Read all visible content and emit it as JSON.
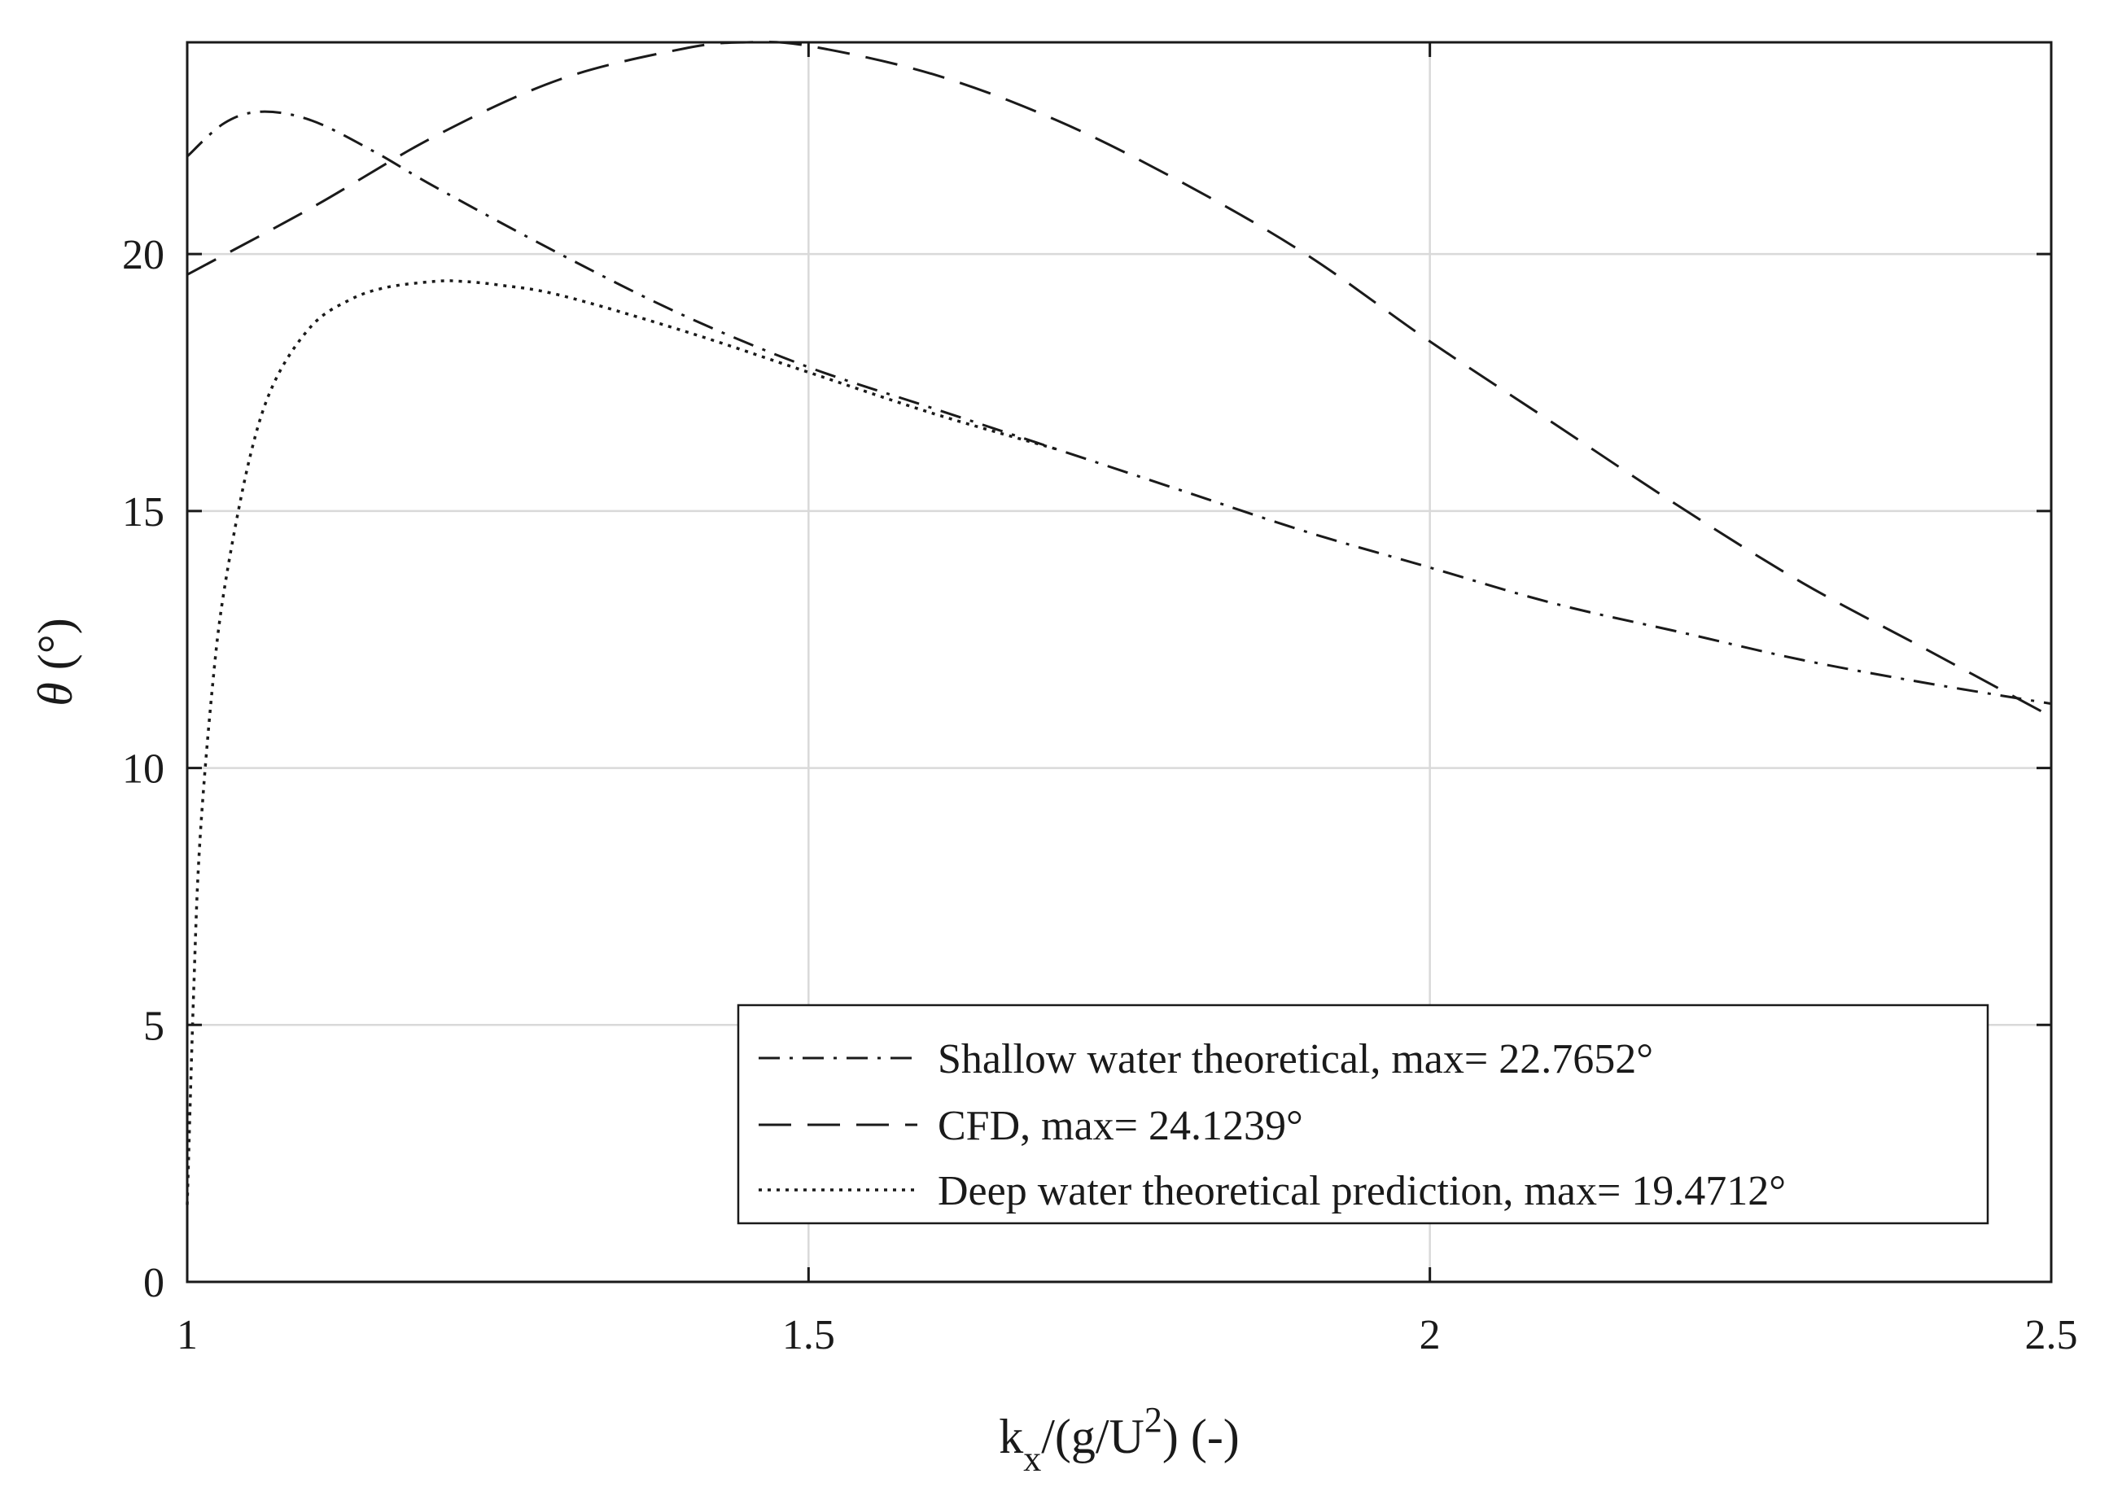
{
  "chart_data": {
    "type": "line",
    "title": "",
    "xlabel_main": "k",
    "xlabel_sub": "x",
    "xlabel_mid": "/(g/U",
    "xlabel_sup": "2",
    "xlabel_end": ") (-)",
    "ylabel_symbol": "θ",
    "ylabel_unit": " (°)",
    "xlim": [
      1,
      2.5
    ],
    "ylim": [
      0,
      24.12
    ],
    "xticks": [
      1,
      1.5,
      2,
      2.5
    ],
    "xtick_labels": [
      "1",
      "1.5",
      "2",
      "2.5"
    ],
    "yticks": [
      0,
      5,
      10,
      15,
      20
    ],
    "ytick_labels": [
      "0",
      "5",
      "10",
      "15",
      "20"
    ],
    "grid": true,
    "legend_position": "bottom-right",
    "series": [
      {
        "name": "Shallow water theoretical, max= 22.7652°",
        "style": "dash-dot",
        "color": "#1a1a1a",
        "x": [
          1.0,
          1.03,
          1.06,
          1.1,
          1.15,
          1.2,
          1.3,
          1.4,
          1.5,
          1.6,
          1.7,
          1.8,
          1.9,
          2.0,
          2.1,
          2.2,
          2.3,
          2.4,
          2.5
        ],
        "y": [
          21.9,
          22.55,
          22.77,
          22.6,
          22.0,
          21.3,
          20.0,
          18.8,
          17.8,
          17.0,
          16.2,
          15.4,
          14.6,
          13.9,
          13.2,
          12.65,
          12.1,
          11.65,
          11.25
        ]
      },
      {
        "name": "CFD, max= 24.1239°",
        "style": "dash",
        "color": "#1a1a1a",
        "x": [
          1.0,
          1.1,
          1.2,
          1.3,
          1.4,
          1.45,
          1.5,
          1.6,
          1.7,
          1.8,
          1.9,
          2.0,
          2.1,
          2.2,
          2.3,
          2.4,
          2.5
        ],
        "y": [
          19.6,
          20.9,
          22.3,
          23.4,
          24.0,
          24.12,
          24.05,
          23.5,
          22.6,
          21.4,
          20.0,
          18.3,
          16.7,
          15.1,
          13.6,
          12.3,
          11.0
        ]
      },
      {
        "name": "Deep water theoretical prediction, max= 19.4712°",
        "style": "dotted",
        "color": "#1a1a1a",
        "x": [
          1.0,
          1.005,
          1.01,
          1.02,
          1.03,
          1.05,
          1.07,
          1.1,
          1.13,
          1.16,
          1.2,
          1.22,
          1.25,
          1.3,
          1.4,
          1.5,
          1.6,
          1.7
        ],
        "y": [
          1.5,
          5.5,
          8.5,
          11.5,
          13.5,
          16.0,
          17.5,
          18.6,
          19.1,
          19.35,
          19.47,
          19.47,
          19.4,
          19.2,
          18.5,
          17.7,
          16.9,
          16.2
        ]
      }
    ]
  }
}
